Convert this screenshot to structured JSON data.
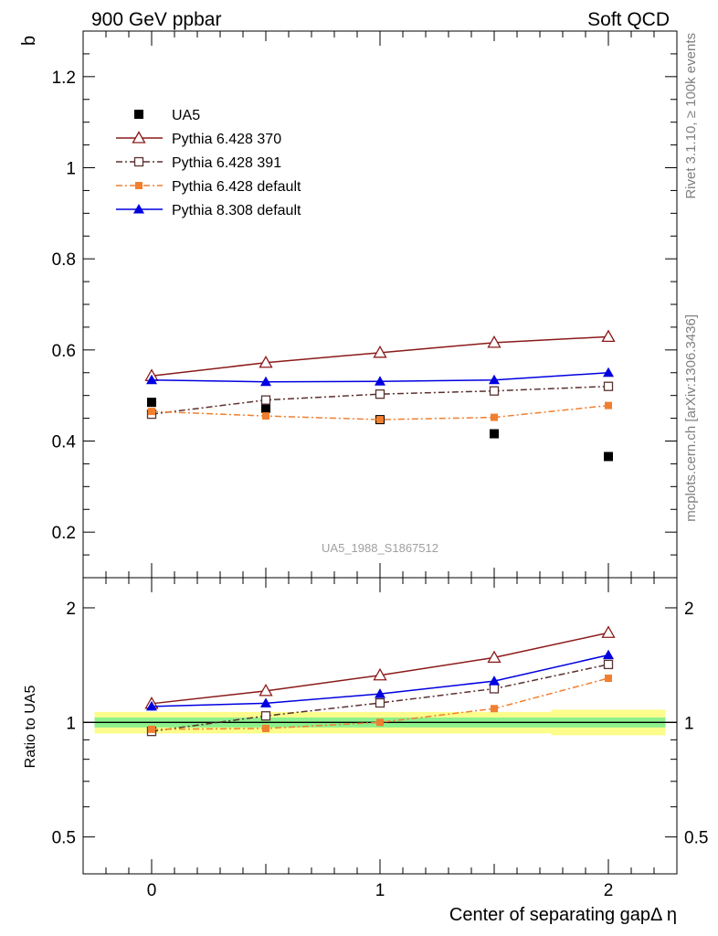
{
  "header": {
    "left": "900 GeV ppbar",
    "right": "Soft QCD"
  },
  "side_text": {
    "rivet": "Rivet 3.1.10, ≥ 100k events",
    "mcplots": "mcplots.cern.ch [arXiv:1306.3436]"
  },
  "analysis_id": "UA5_1988_S1867512",
  "colors": {
    "data": "#000000",
    "p370": "#8b1a1a",
    "p391": "#5a3030",
    "p6def": "#f07f30",
    "p8def": "#0000e0",
    "band_outer": "#fcfc8c",
    "band_inner": "#8cf08c"
  },
  "chart_data": [
    {
      "type": "scatter",
      "panel": "main",
      "ylabel": "b",
      "xlim": [
        -0.3,
        2.3
      ],
      "ylim": [
        0.1,
        1.3
      ],
      "yticks": [
        "0.2",
        "0.4",
        "0.6",
        "0.8",
        "1",
        "1.2"
      ],
      "x": [
        0,
        0.5,
        1,
        1.5,
        2
      ],
      "legend_position": "top-left",
      "series": [
        {
          "name": "UA5",
          "key": "data",
          "marker": "square-filled",
          "line": "none",
          "values": [
            0.485,
            0.472,
            0.447,
            0.416,
            0.366
          ]
        },
        {
          "name": "Pythia 6.428 370",
          "key": "p370",
          "marker": "triangle-open",
          "line": "solid",
          "values": [
            0.543,
            0.572,
            0.594,
            0.616,
            0.629
          ]
        },
        {
          "name": "Pythia 6.428 391",
          "key": "p391",
          "marker": "square-open",
          "line": "dashdot",
          "values": [
            0.459,
            0.49,
            0.503,
            0.51,
            0.52
          ]
        },
        {
          "name": "Pythia 6.428 default",
          "key": "p6def",
          "marker": "square-filled-small",
          "line": "dashdot",
          "values": [
            0.465,
            0.455,
            0.447,
            0.452,
            0.478
          ]
        },
        {
          "name": "Pythia 8.308 default",
          "key": "p8def",
          "marker": "triangle-filled",
          "line": "solid",
          "values": [
            0.534,
            0.53,
            0.531,
            0.534,
            0.55
          ]
        }
      ]
    },
    {
      "type": "line",
      "panel": "ratio",
      "ylabel": "Ratio to UA5",
      "xlabel": "Center of separating gapΔ η",
      "xlim": [
        -0.3,
        2.3
      ],
      "ylim": [
        0.4,
        2.4
      ],
      "log_y": true,
      "yticks": [
        "0.5",
        "1",
        "2"
      ],
      "xticks": [
        "0",
        "1",
        "2"
      ],
      "x": [
        0,
        0.5,
        1,
        1.5,
        2
      ],
      "series": [
        {
          "key": "p370",
          "values": [
            1.12,
            1.21,
            1.33,
            1.48,
            1.72
          ]
        },
        {
          "key": "p391",
          "values": [
            0.947,
            1.04,
            1.125,
            1.226,
            1.42
          ]
        },
        {
          "key": "p6def",
          "values": [
            0.959,
            0.964,
            1.0,
            1.087,
            1.306
          ]
        },
        {
          "key": "p8def",
          "values": [
            1.101,
            1.123,
            1.188,
            1.284,
            1.503
          ]
        }
      ],
      "reference_band": {
        "inner": [
          0.97,
          1.03
        ],
        "outer": [
          0.935,
          1.065
        ],
        "outer_right": [
          0.925,
          1.08
        ]
      }
    }
  ]
}
